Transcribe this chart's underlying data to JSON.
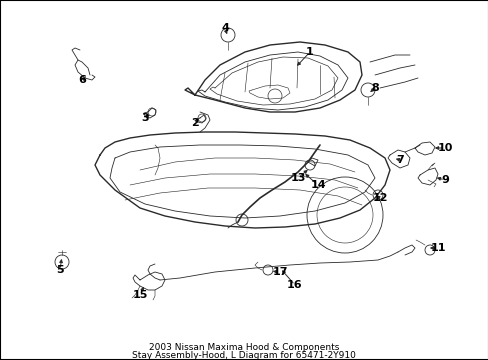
{
  "title_line1": "2003 Nissan Maxima Hood & Components",
  "title_line2": "Stay Assembly-Hood, L Diagram for 65471-2Y910",
  "background_color": "#ffffff",
  "border_color": "#000000",
  "text_color": "#000000",
  "fig_width": 4.89,
  "fig_height": 3.6,
  "dpi": 100,
  "font_size_labels": 8,
  "font_size_title": 6.5,
  "label_font_weight": "bold",
  "line_color": "#2a2a2a",
  "lw_main": 1.0,
  "lw_thin": 0.6
}
